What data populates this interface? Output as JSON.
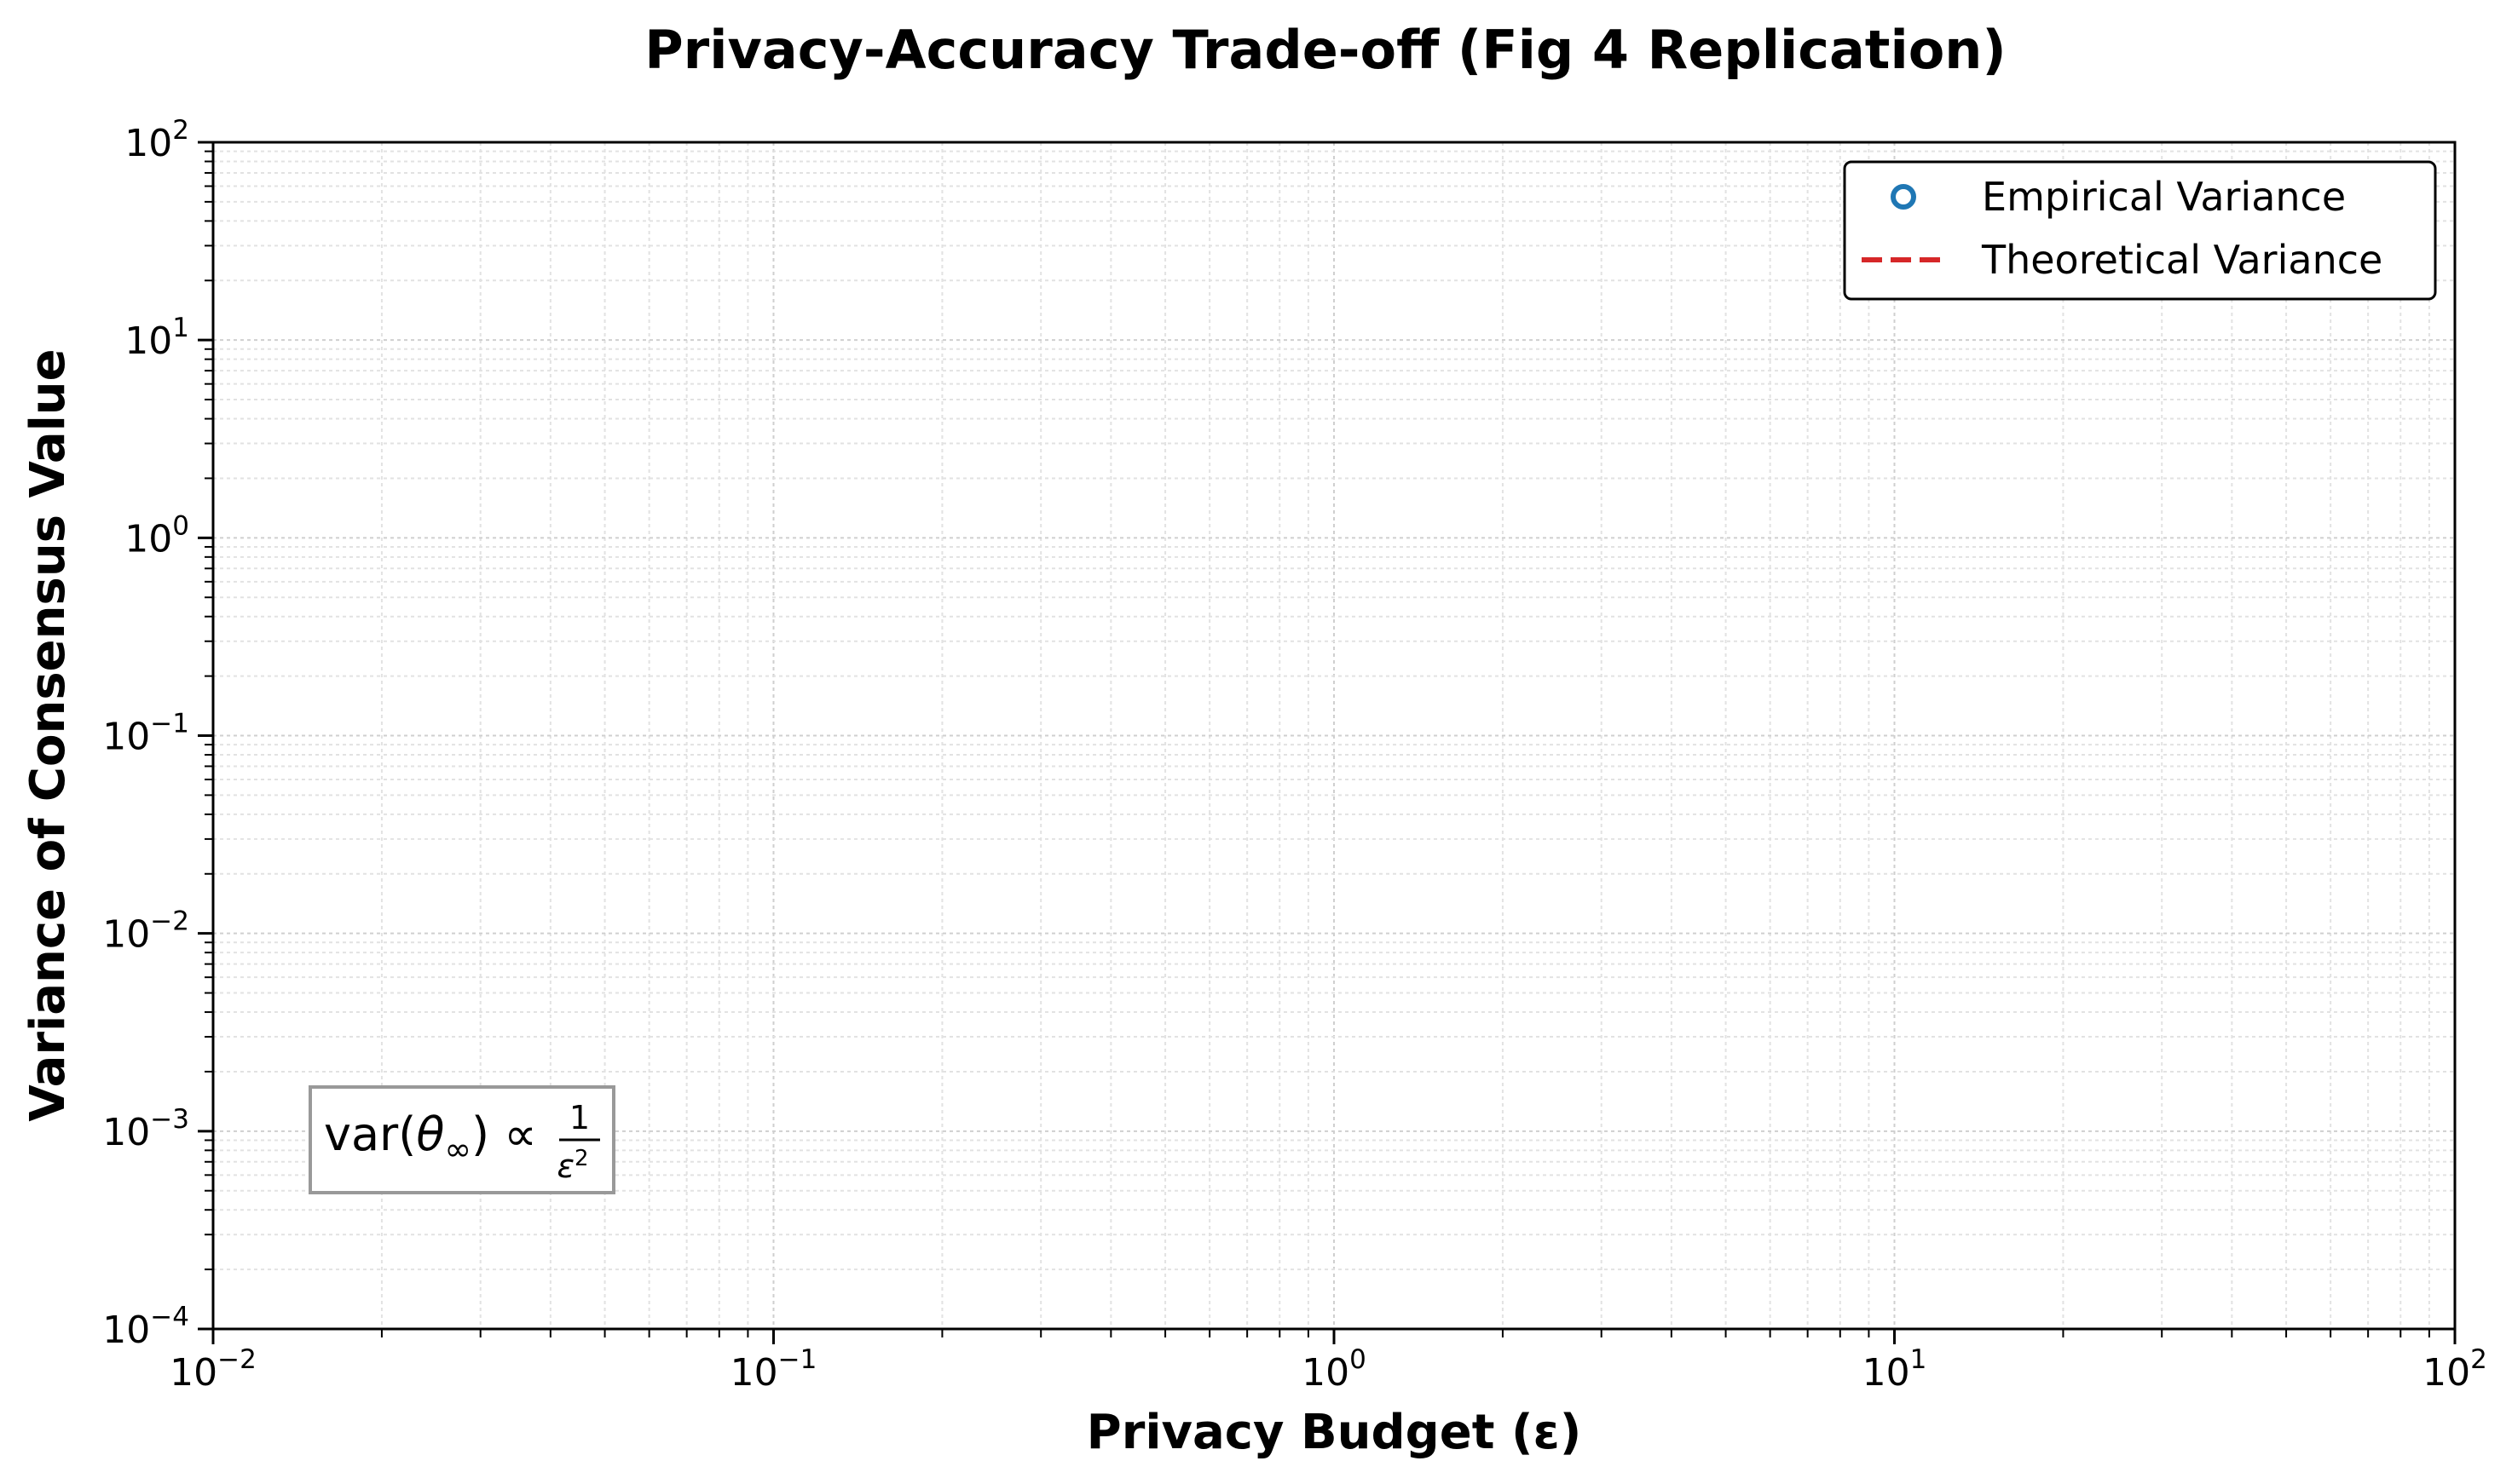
{
  "chart_data": {
    "type": "line",
    "title": "Privacy-Accuracy Trade-off (Fig 4 Replication)",
    "xlabel": "Privacy Budget (ε)",
    "ylabel": "Variance of Consensus Value",
    "xscale": "log",
    "yscale": "log",
    "xlim": [
      0.01,
      100
    ],
    "ylim": [
      0.0001,
      100
    ],
    "x_ticks": [
      {
        "base": "10",
        "exp": "−2",
        "value": 0.01
      },
      {
        "base": "10",
        "exp": "−1",
        "value": 0.1
      },
      {
        "base": "10",
        "exp": "0",
        "value": 1
      },
      {
        "base": "10",
        "exp": "1",
        "value": 10
      },
      {
        "base": "10",
        "exp": "2",
        "value": 100
      }
    ],
    "y_ticks": [
      {
        "base": "10",
        "exp": "−4",
        "value": 0.0001
      },
      {
        "base": "10",
        "exp": "−3",
        "value": 0.001
      },
      {
        "base": "10",
        "exp": "−2",
        "value": 0.01
      },
      {
        "base": "10",
        "exp": "−1",
        "value": 0.1
      },
      {
        "base": "10",
        "exp": "0",
        "value": 1
      },
      {
        "base": "10",
        "exp": "1",
        "value": 10
      },
      {
        "base": "10",
        "exp": "2",
        "value": 100
      }
    ],
    "grid": true,
    "grid_minor": true,
    "legend_position": "top-right",
    "series": [
      {
        "name": "Empirical Variance",
        "marker": "open-circle",
        "color": "#1f77b4",
        "x": [],
        "y": []
      },
      {
        "name": "Theoretical Variance",
        "linestyle": "dashed",
        "color": "#d62728",
        "x": [],
        "y": []
      }
    ],
    "annotation": {
      "prefix": "var(",
      "theta": "θ",
      "sub": "∞",
      "suffix": ") ∝",
      "numerator": "1",
      "denominator": "ε",
      "den_exp": "2",
      "position": "bottom-left"
    }
  }
}
